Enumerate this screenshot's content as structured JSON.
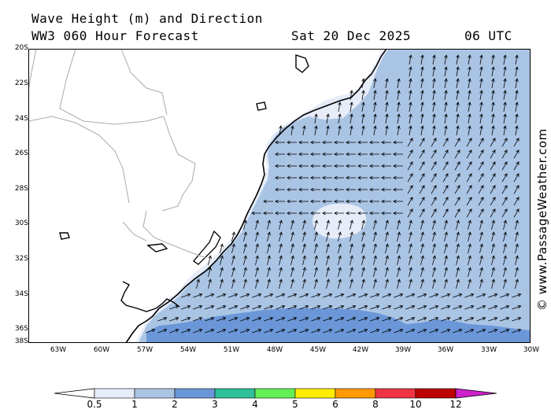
{
  "header": {
    "title": "Wave Height (m) and Direction",
    "forecast": "WW3 060 Hour Forecast",
    "date": "Sat 20 Dec 2025",
    "time": "06 UTC"
  },
  "credit": "© www.PassageWeather.com",
  "lat_labels": [
    "20S",
    "22S",
    "24S",
    "26S",
    "28S",
    "30S",
    "32S",
    "34S",
    "36S",
    "38S"
  ],
  "lon_labels": [
    "63W",
    "60W",
    "57W",
    "54W",
    "51W",
    "48W",
    "45W",
    "42W",
    "39W",
    "36W",
    "33W",
    "30W"
  ],
  "legend": {
    "values": [
      "0.5",
      "1",
      "2",
      "3",
      "4",
      "5",
      "6",
      "8",
      "10",
      "12"
    ],
    "colors": [
      "#e6ecf8",
      "#aac4e4",
      "#6b97d8",
      "#2fbf9a",
      "#66ee55",
      "#ffee00",
      "#ff9900",
      "#ee3344",
      "#bb0000",
      "#cc22cc"
    ]
  },
  "colors": {
    "land": "#ffffff",
    "sea_band1": "#e6ecf8",
    "sea_band2": "#aac4e4",
    "sea_band3": "#6b97d8",
    "coast": "#000000",
    "border": "#aaaaaa"
  }
}
